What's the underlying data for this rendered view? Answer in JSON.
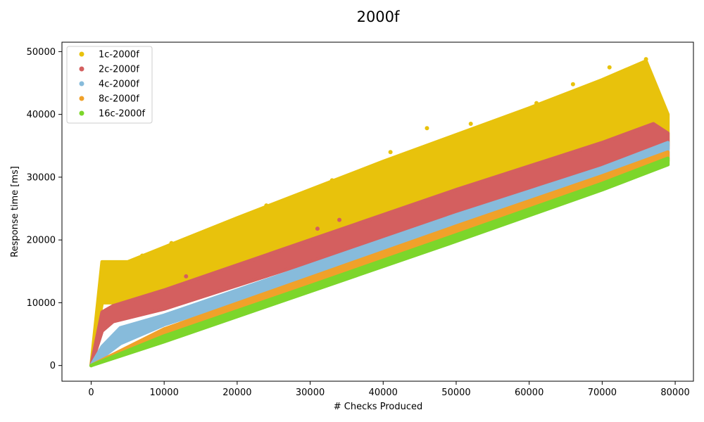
{
  "chart_data": {
    "type": "scatter",
    "title": "2000f",
    "xlabel": "# Checks Produced",
    "ylabel": "Response time [ms]",
    "xlim": [
      -4000,
      82500
    ],
    "ylim": [
      -2500,
      51500
    ],
    "xticks": [
      0,
      10000,
      20000,
      30000,
      40000,
      50000,
      60000,
      70000,
      80000
    ],
    "yticks": [
      0,
      10000,
      20000,
      30000,
      40000,
      50000
    ],
    "grid": false,
    "legend_position": "top-left",
    "series": [
      {
        "name": "1c-2000f",
        "color": "#e8c20c",
        "lower": [
          [
            0,
            0
          ],
          [
            1500,
            10000
          ],
          [
            5000,
            10000
          ],
          [
            20000,
            15500
          ],
          [
            40000,
            23000
          ],
          [
            60000,
            30500
          ],
          [
            76000,
            36500
          ],
          [
            79000,
            35000
          ]
        ],
        "upper": [
          [
            0,
            0
          ],
          [
            1500,
            16500
          ],
          [
            5000,
            16500
          ],
          [
            20000,
            23500
          ],
          [
            40000,
            32500
          ],
          [
            60000,
            41000
          ],
          [
            70000,
            45500
          ],
          [
            76000,
            48500
          ],
          [
            79000,
            40000
          ]
        ],
        "outliers": [
          [
            3500,
            15800
          ],
          [
            5000,
            16300
          ],
          [
            7000,
            17500
          ],
          [
            11000,
            19500
          ],
          [
            17000,
            21800
          ],
          [
            24000,
            25500
          ],
          [
            33000,
            29500
          ],
          [
            41000,
            34000
          ],
          [
            46000,
            37800
          ],
          [
            52000,
            38500
          ],
          [
            61000,
            41800
          ],
          [
            66000,
            44800
          ],
          [
            71000,
            47500
          ],
          [
            76000,
            48800
          ]
        ]
      },
      {
        "name": "2c-2000f",
        "color": "#d45f5f",
        "lower": [
          [
            0,
            0
          ],
          [
            1500,
            5500
          ],
          [
            3000,
            7000
          ],
          [
            10000,
            9000
          ],
          [
            30000,
            16500
          ],
          [
            50000,
            24000
          ],
          [
            70000,
            31500
          ],
          [
            79000,
            34500
          ]
        ],
        "upper": [
          [
            0,
            0
          ],
          [
            1500,
            8500
          ],
          [
            3000,
            9500
          ],
          [
            10000,
            12000
          ],
          [
            30000,
            20000
          ],
          [
            50000,
            28000
          ],
          [
            70000,
            35500
          ],
          [
            77000,
            38500
          ],
          [
            79000,
            37000
          ]
        ],
        "outliers": [
          [
            6000,
            5200
          ],
          [
            13000,
            14200
          ],
          [
            31000,
            21800
          ],
          [
            34000,
            23200
          ]
        ]
      },
      {
        "name": "4c-2000f",
        "color": "#87bbdb",
        "lower": [
          [
            0,
            0
          ],
          [
            4000,
            3500
          ],
          [
            10000,
            6500
          ],
          [
            30000,
            14000
          ],
          [
            50000,
            21500
          ],
          [
            70000,
            29000
          ],
          [
            79000,
            33000
          ]
        ],
        "upper": [
          [
            0,
            0
          ],
          [
            1500,
            3000
          ],
          [
            4000,
            6000
          ],
          [
            10000,
            8000
          ],
          [
            30000,
            16000
          ],
          [
            50000,
            24000
          ],
          [
            70000,
            31500
          ],
          [
            79000,
            35500
          ]
        ],
        "outliers": []
      },
      {
        "name": "8c-2000f",
        "color": "#f0a12a",
        "lower": [
          [
            0,
            0
          ],
          [
            10000,
            4600
          ],
          [
            30000,
            12600
          ],
          [
            50000,
            20600
          ],
          [
            70000,
            28600
          ],
          [
            79000,
            32600
          ]
        ],
        "upper": [
          [
            0,
            0
          ],
          [
            10000,
            5800
          ],
          [
            30000,
            14000
          ],
          [
            50000,
            22200
          ],
          [
            70000,
            30200
          ],
          [
            79000,
            34000
          ]
        ],
        "outliers": []
      },
      {
        "name": "16c-2000f",
        "color": "#7cd62b",
        "lower": [
          [
            0,
            0
          ],
          [
            10000,
            3800
          ],
          [
            30000,
            11800
          ],
          [
            50000,
            19800
          ],
          [
            70000,
            28000
          ],
          [
            79000,
            32000
          ]
        ],
        "upper": [
          [
            0,
            0
          ],
          [
            10000,
            4700
          ],
          [
            30000,
            12700
          ],
          [
            50000,
            20800
          ],
          [
            70000,
            29000
          ],
          [
            79000,
            33000
          ]
        ],
        "outliers": []
      }
    ]
  }
}
